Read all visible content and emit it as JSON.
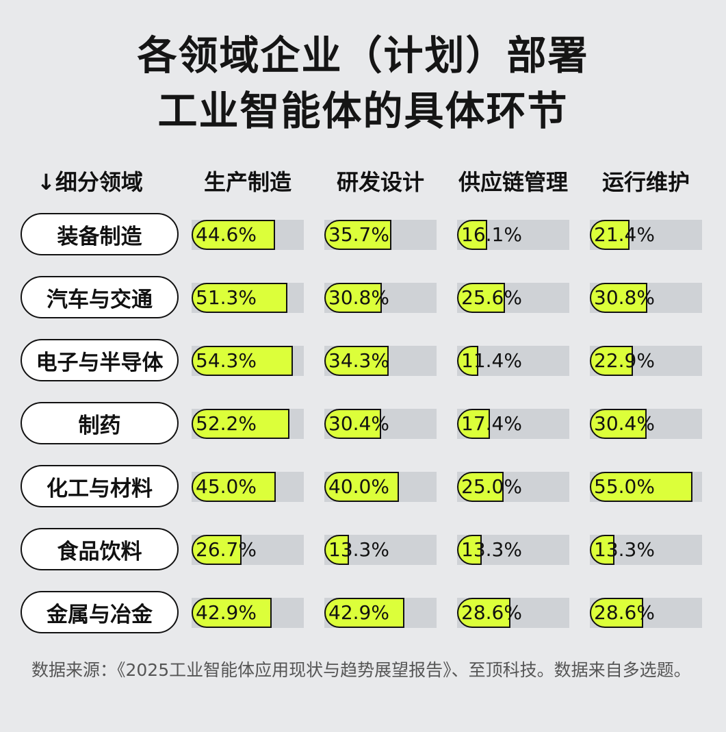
{
  "chart_data": {
    "type": "bar",
    "title_lines": [
      "各领域企业（计划）部署",
      "工业智能体的具体环节"
    ],
    "row_header": "↓细分领域",
    "categories": [
      "装备制造",
      "汽车与交通",
      "电子与半导体",
      "制药",
      "化工与材料",
      "食品饮料",
      "金属与冶金"
    ],
    "series": [
      {
        "name": "生产制造",
        "values": [
          44.6,
          51.3,
          54.3,
          52.2,
          45.0,
          26.7,
          42.9
        ],
        "labels": [
          "44.6%",
          "51.3%",
          "54.3%",
          "52.2%",
          "45.0%",
          "26.7%",
          "42.9%"
        ]
      },
      {
        "name": "研发设计",
        "values": [
          35.7,
          30.8,
          34.3,
          30.4,
          40.0,
          13.3,
          42.9
        ],
        "labels": [
          "35.7%",
          "30.8%",
          "34.3%",
          "30.4%",
          "40.0%",
          "13.3%",
          "42.9%"
        ]
      },
      {
        "name": "供应链管理",
        "values": [
          16.1,
          25.6,
          11.4,
          17.4,
          25.0,
          13.3,
          28.6
        ],
        "labels": [
          "16.1%",
          "25.6%",
          "11.4%",
          "17.4%",
          "25.0%",
          "13.3%",
          "28.6%"
        ]
      },
      {
        "name": "运行维护",
        "values": [
          21.4,
          30.8,
          22.9,
          30.4,
          55.0,
          13.3,
          28.6
        ],
        "labels": [
          "21.4%",
          "30.8%",
          "22.9%",
          "30.4%",
          "55.0%",
          "13.3%",
          "28.6%"
        ]
      }
    ],
    "value_unit": "%",
    "xlim": [
      0,
      60
    ],
    "colors": {
      "fill": "#dcff3a",
      "track": "#cfd2d6",
      "outline": "#111111",
      "background": "#e8e9eb"
    }
  },
  "source_note": "数据来源：《2025工业智能体应用现状与趋势展望报告》、至顶科技。数据来自多选题。"
}
